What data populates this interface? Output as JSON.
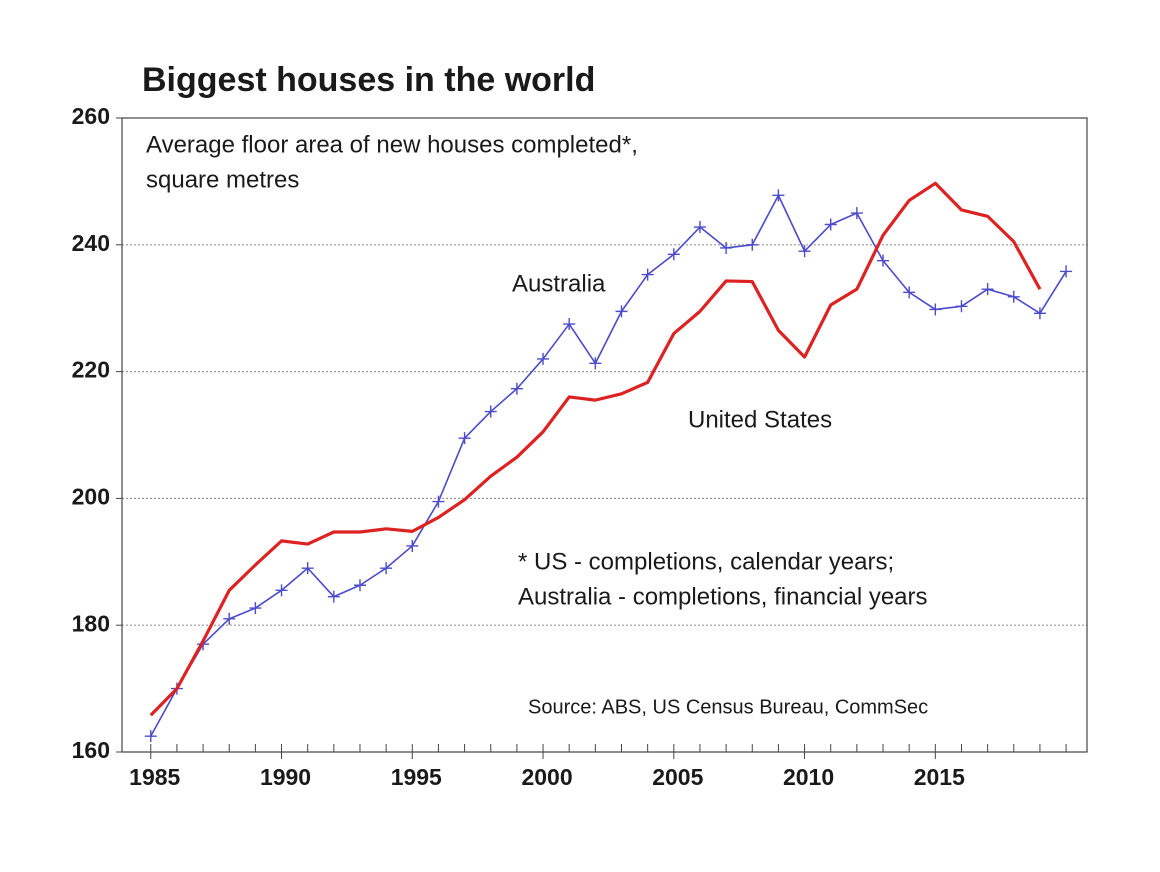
{
  "chart_data": {
    "type": "line",
    "title": "Biggest houses in the world",
    "subtitle": [
      "Average floor area of new houses completed*,",
      "square metres"
    ],
    "annotations": [
      "Australia",
      "United States",
      "* US - completions, calendar years;",
      "Australia - completions, financial years",
      "Source: ABS, US Census Bureau, CommSec"
    ],
    "x": [
      1985,
      1986,
      1987,
      1988,
      1989,
      1990,
      1991,
      1992,
      1993,
      1994,
      1995,
      1996,
      1997,
      1998,
      1999,
      2000,
      2001,
      2002,
      2003,
      2004,
      2005,
      2006,
      2007,
      2008,
      2009,
      2010,
      2011,
      2012,
      2013,
      2014,
      2015,
      2016,
      2017,
      2018,
      2019,
      2020
    ],
    "series": [
      {
        "name": "Australia",
        "color": "#4b4bcc",
        "marker": "plus",
        "values": [
          162.5,
          170,
          177,
          181,
          182.7,
          185.5,
          189,
          184.5,
          186.3,
          189,
          192.5,
          199.5,
          209.5,
          213.7,
          217.3,
          222,
          227.5,
          221.3,
          229.5,
          235.3,
          238.5,
          242.8,
          239.5,
          240,
          247.8,
          239,
          243.2,
          245,
          237.5,
          232.5,
          229.8,
          230.3,
          233,
          231.8,
          229.2,
          235.8
        ]
      },
      {
        "name": "United States",
        "color": "#dd2222",
        "marker": "none",
        "values": [
          165.8,
          170,
          177.5,
          185.5,
          189.5,
          193.3,
          192.8,
          194.7,
          194.7,
          195.2,
          194.8,
          197,
          199.8,
          203.5,
          206.5,
          210.5,
          216,
          215.5,
          216.5,
          218.3,
          226,
          229.5,
          234.3,
          234.2,
          226.5,
          222.3,
          230.5,
          233,
          241.5,
          247,
          249.7,
          245.5,
          244.5,
          240.5,
          233,
          null
        ]
      }
    ],
    "xlim": [
      1983.9,
      2020.8
    ],
    "ylim": [
      160,
      260
    ],
    "xticks": [
      1985,
      1990,
      1995,
      2000,
      2005,
      2010,
      2015
    ],
    "xminorticks": [
      1985,
      1986,
      1987,
      1988,
      1989,
      1990,
      1991,
      1992,
      1993,
      1994,
      1995,
      1996,
      1997,
      1998,
      1999,
      2000,
      2001,
      2002,
      2003,
      2004,
      2005,
      2006,
      2007,
      2008,
      2009,
      2010,
      2011,
      2012,
      2013,
      2014,
      2015,
      2016,
      2017,
      2018,
      2019,
      2020
    ],
    "yticks": [
      160,
      180,
      200,
      220,
      240,
      260
    ],
    "grid": true
  }
}
